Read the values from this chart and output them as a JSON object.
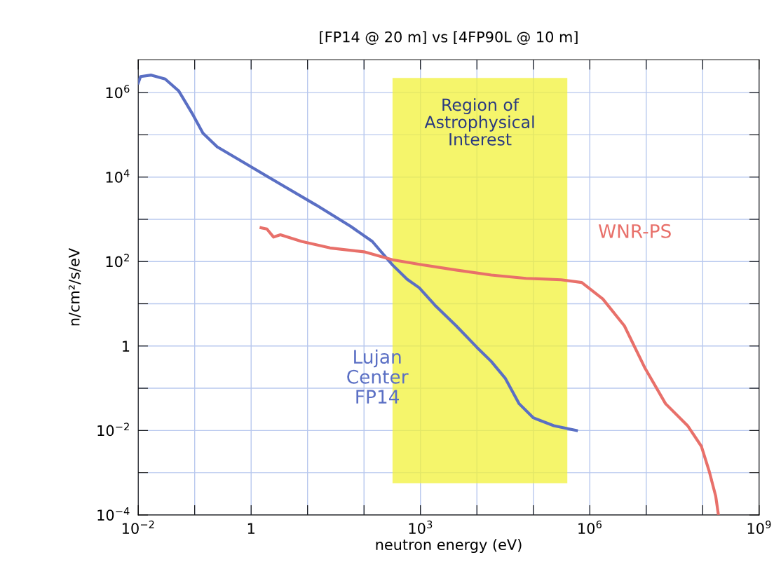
{
  "chart_data": {
    "type": "line",
    "title": "[FP14 @ 20 m] vs [4FP90L @ 10 m]",
    "xlabel": "neutron energy (eV)",
    "ylabel": "n/cm²/s/eV",
    "log": "xy",
    "grid": true,
    "legend": false,
    "marker": "none",
    "line_style": "solid",
    "xlim": [
      0.01,
      1000000000
    ],
    "ylim": [
      0.0001,
      6000000
    ],
    "xticks": [
      {
        "value": 0.01,
        "label": "10$^{−2}$"
      },
      {
        "value": 0.1,
        "label": null
      },
      {
        "value": 1,
        "label": "1"
      },
      {
        "value": 10,
        "label": null
      },
      {
        "value": 100,
        "label": null
      },
      {
        "value": 1000,
        "label": "10$^{3}$"
      },
      {
        "value": 10000,
        "label": null
      },
      {
        "value": 100000,
        "label": null
      },
      {
        "value": 1000000,
        "label": "10$^{6}$"
      },
      {
        "value": 10000000,
        "label": null
      },
      {
        "value": 100000000,
        "label": null
      },
      {
        "value": 1000000000,
        "label": "10$^{9}$"
      }
    ],
    "yticks": [
      {
        "value": 0.0001,
        "label": "10$^{−4}$"
      },
      {
        "value": 0.001,
        "label": null
      },
      {
        "value": 0.01,
        "label": "10$^{−2}$"
      },
      {
        "value": 0.1,
        "label": null
      },
      {
        "value": 1,
        "label": "1"
      },
      {
        "value": 10,
        "label": null
      },
      {
        "value": 100,
        "label": "10$^{2}$"
      },
      {
        "value": 1000,
        "label": null
      },
      {
        "value": 10000,
        "label": "10$^{4}$"
      },
      {
        "value": 100000,
        "label": null
      },
      {
        "value": 1000000,
        "label": "10$^{6}$"
      }
    ],
    "series": [
      {
        "name": "Lujan Center FP14",
        "color": "#5a6fc4",
        "x": [
          0.01,
          0.011,
          0.017,
          0.03,
          0.052,
          0.093,
          0.14,
          0.25,
          0.79,
          3.3,
          14,
          58,
          140,
          320,
          580,
          950,
          1800,
          4300,
          10000,
          18000,
          32000,
          56000,
          100000,
          230000,
          580000
        ],
        "values": [
          1700000,
          2400000,
          2600000,
          2100000,
          1100000,
          300000,
          110000,
          52000,
          21000,
          6800,
          2200,
          680,
          300,
          83,
          38,
          24,
          9.3,
          3.0,
          0.93,
          0.43,
          0.17,
          0.043,
          0.02,
          0.013,
          0.01
        ]
      },
      {
        "name": "WNR-PS",
        "color": "#e8706a",
        "x": [
          1.5,
          1.9,
          2.5,
          3.3,
          7.8,
          25,
          100,
          320,
          1000,
          4300,
          18000,
          74000,
          310000,
          720000,
          1700000,
          4100000,
          9500000,
          22000000,
          54000000,
          95000000,
          130000000,
          170000000,
          190000000
        ],
        "values": [
          630,
          590,
          380,
          430,
          300,
          210,
          170,
          110,
          85,
          63,
          48,
          40,
          37,
          32,
          13,
          3.0,
          0.3,
          0.043,
          0.013,
          0.0042,
          0.0011,
          0.00028,
          0.0001
        ]
      }
    ],
    "bands": [
      {
        "axis": "x",
        "from": 320,
        "to": 400000,
        "label": "Region of\nAstrophysical\nInterest",
        "color": "#f2f23a"
      }
    ]
  }
}
